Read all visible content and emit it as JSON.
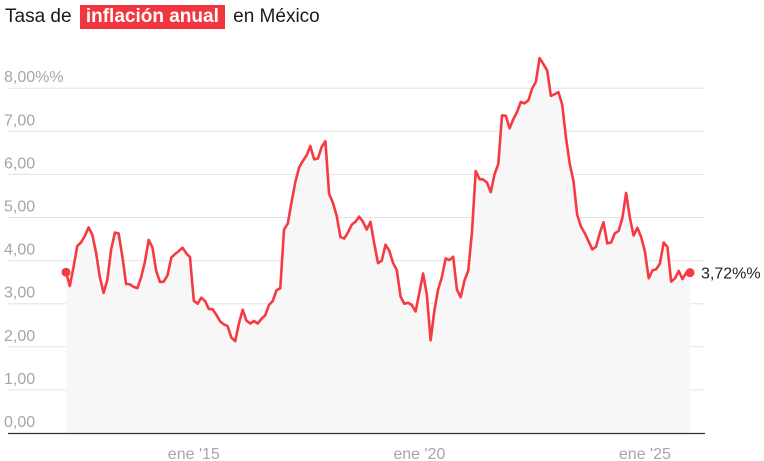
{
  "title": {
    "prefix": "Tasa de",
    "highlight": "inflación anual",
    "suffix": "en México"
  },
  "colors": {
    "accent": "#f2363f",
    "line": "#f53a42",
    "area": "#f7f7f7",
    "grid": "#e3e3e3",
    "axis": "#333333",
    "tick_text": "#a6a6a6"
  },
  "end_label": "3,72%%",
  "chart_data": {
    "type": "line",
    "title": "Tasa de inflación anual en México",
    "xlabel": "",
    "ylabel": "",
    "ylim": [
      0,
      8.5
    ],
    "grid": true,
    "yticks": [
      {
        "value": 0,
        "label": "0,00"
      },
      {
        "value": 1,
        "label": "1,00"
      },
      {
        "value": 2,
        "label": "2,00"
      },
      {
        "value": 3,
        "label": "3,00"
      },
      {
        "value": 4,
        "label": "4,00"
      },
      {
        "value": 5,
        "label": "5,00"
      },
      {
        "value": 6,
        "label": "6,00"
      },
      {
        "value": 7,
        "label": "7,00"
      },
      {
        "value": 8,
        "label": "8,00%%"
      }
    ],
    "xticks": [
      {
        "month_index": 34,
        "label": "ene '15"
      },
      {
        "month_index": 94,
        "label": "ene '20"
      },
      {
        "month_index": 154,
        "label": "ene '25"
      }
    ],
    "x_start": "2012-03",
    "x_step": "month",
    "series": [
      {
        "name": "Inflación anual (%)",
        "values": [
          3.73,
          3.41,
          3.85,
          4.34,
          4.42,
          4.57,
          4.77,
          4.6,
          4.18,
          3.62,
          3.25,
          3.55,
          4.25,
          4.65,
          4.63,
          4.09,
          3.46,
          3.45,
          3.39,
          3.36,
          3.62,
          3.97,
          4.48,
          4.3,
          3.76,
          3.5,
          3.51,
          3.66,
          4.07,
          4.15,
          4.22,
          4.3,
          4.17,
          4.08,
          3.07,
          3.0,
          3.14,
          3.06,
          2.88,
          2.87,
          2.74,
          2.59,
          2.52,
          2.48,
          2.21,
          2.13,
          2.54,
          2.86,
          2.61,
          2.54,
          2.6,
          2.54,
          2.65,
          2.73,
          2.97,
          3.06,
          3.31,
          3.36,
          4.72,
          4.86,
          5.35,
          5.82,
          6.16,
          6.31,
          6.44,
          6.66,
          6.35,
          6.37,
          6.63,
          6.77,
          5.55,
          5.34,
          5.04,
          4.55,
          4.51,
          4.65,
          4.83,
          4.9,
          5.02,
          4.9,
          4.72,
          4.9,
          4.4,
          3.94,
          4.0,
          4.37,
          4.23,
          3.95,
          3.78,
          3.16,
          3.0,
          3.02,
          2.97,
          2.82,
          3.25,
          3.7,
          3.2,
          2.15,
          2.84,
          3.33,
          3.62,
          4.05,
          4.01,
          4.09,
          3.33,
          3.15,
          3.54,
          3.76,
          4.67,
          6.08,
          5.89,
          5.88,
          5.81,
          5.59,
          6.0,
          6.24,
          7.37,
          7.36,
          7.07,
          7.28,
          7.45,
          7.68,
          7.65,
          7.72,
          7.99,
          8.15,
          8.7,
          8.56,
          8.41,
          7.82,
          7.86,
          7.91,
          7.62,
          6.85,
          6.25,
          5.84,
          5.06,
          4.79,
          4.64,
          4.45,
          4.26,
          4.32,
          4.64,
          4.89,
          4.4,
          4.42,
          4.63,
          4.69,
          4.98,
          5.57,
          4.99,
          4.58,
          4.76,
          4.55,
          4.21,
          3.59,
          3.77,
          3.8,
          3.93,
          4.42,
          4.32,
          3.51,
          3.59,
          3.76,
          3.57,
          3.72,
          3.72
        ]
      }
    ],
    "end_annotation": {
      "value": 3.72,
      "label": "3,72%%"
    },
    "start_marker": {
      "value": 3.73
    }
  }
}
